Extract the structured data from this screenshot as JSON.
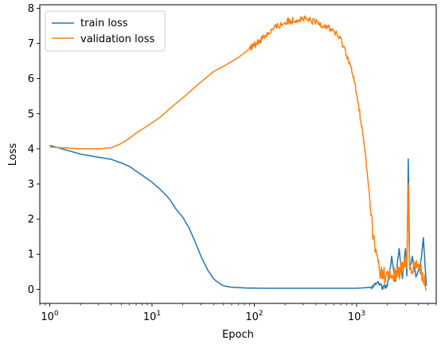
{
  "chart_data": {
    "type": "line",
    "title": "",
    "xlabel": "Epoch",
    "ylabel": "Loss",
    "xscale": "log",
    "xlim": [
      0.8,
      6000
    ],
    "ylim": [
      -0.4,
      8.1
    ],
    "xticks": [
      {
        "value": 1,
        "base": "10",
        "exp": "0"
      },
      {
        "value": 10,
        "base": "10",
        "exp": "1"
      },
      {
        "value": 100,
        "base": "10",
        "exp": "2"
      },
      {
        "value": 1000,
        "base": "10",
        "exp": "3"
      }
    ],
    "yticks": [
      0,
      1,
      2,
      3,
      4,
      5,
      6,
      7,
      8
    ],
    "grid": false,
    "legend": "top-left",
    "series": [
      {
        "name": "train loss",
        "color": "#1f77b4",
        "points": [
          [
            1,
            4.1
          ],
          [
            2,
            3.85
          ],
          [
            3,
            3.76
          ],
          [
            4,
            3.7
          ],
          [
            5,
            3.6
          ],
          [
            6,
            3.5
          ],
          [
            8,
            3.25
          ],
          [
            10,
            3.05
          ],
          [
            12,
            2.85
          ],
          [
            14,
            2.65
          ],
          [
            15,
            2.55
          ],
          [
            17,
            2.3
          ],
          [
            20,
            2.05
          ],
          [
            23,
            1.75
          ],
          [
            26,
            1.4
          ],
          [
            30,
            0.95
          ],
          [
            35,
            0.55
          ],
          [
            40,
            0.3
          ],
          [
            45,
            0.18
          ],
          [
            50,
            0.1
          ],
          [
            60,
            0.06
          ],
          [
            80,
            0.04
          ],
          [
            120,
            0.03
          ],
          [
            200,
            0.03
          ],
          [
            500,
            0.03
          ],
          [
            1000,
            0.03
          ],
          [
            1400,
            0.06
          ],
          [
            1600,
            0.18
          ],
          [
            1800,
            0.05
          ],
          [
            2000,
            0.1
          ],
          [
            2200,
            0.9
          ],
          [
            2400,
            0.2
          ],
          [
            2600,
            1.2
          ],
          [
            2800,
            0.3
          ],
          [
            3000,
            1.2
          ],
          [
            3100,
            0.4
          ],
          [
            3200,
            3.7
          ],
          [
            3300,
            0.6
          ],
          [
            3500,
            0.9
          ],
          [
            3800,
            0.4
          ],
          [
            4000,
            0.5
          ],
          [
            4300,
            0.9
          ],
          [
            4500,
            1.45
          ],
          [
            4800,
            0.1
          ]
        ]
      },
      {
        "name": "validation loss",
        "color": "#ff7f0e",
        "points": [
          [
            1,
            4.05
          ],
          [
            2,
            4.0
          ],
          [
            3,
            4.0
          ],
          [
            4,
            4.03
          ],
          [
            5,
            4.15
          ],
          [
            6,
            4.3
          ],
          [
            7,
            4.45
          ],
          [
            9,
            4.65
          ],
          [
            12,
            4.9
          ],
          [
            15,
            5.15
          ],
          [
            20,
            5.45
          ],
          [
            25,
            5.7
          ],
          [
            30,
            5.9
          ],
          [
            40,
            6.2
          ],
          [
            50,
            6.35
          ],
          [
            70,
            6.6
          ],
          [
            100,
            6.95
          ],
          [
            130,
            7.25
          ],
          [
            160,
            7.45
          ],
          [
            200,
            7.6
          ],
          [
            250,
            7.68
          ],
          [
            300,
            7.7
          ],
          [
            400,
            7.6
          ],
          [
            500,
            7.5
          ],
          [
            600,
            7.35
          ],
          [
            700,
            7.1
          ],
          [
            800,
            6.7
          ],
          [
            900,
            6.2
          ],
          [
            1000,
            5.6
          ],
          [
            1100,
            4.8
          ],
          [
            1200,
            4.0
          ],
          [
            1300,
            3.0
          ],
          [
            1400,
            2.0
          ],
          [
            1500,
            1.2
          ],
          [
            1700,
            0.5
          ],
          [
            2000,
            0.35
          ],
          [
            2400,
            0.4
          ],
          [
            2800,
            0.6
          ],
          [
            3100,
            0.8
          ],
          [
            3200,
            2.9
          ],
          [
            3300,
            0.5
          ],
          [
            3600,
            0.7
          ],
          [
            4000,
            0.6
          ],
          [
            4300,
            0.55
          ],
          [
            4800,
            0.0
          ]
        ]
      }
    ]
  }
}
